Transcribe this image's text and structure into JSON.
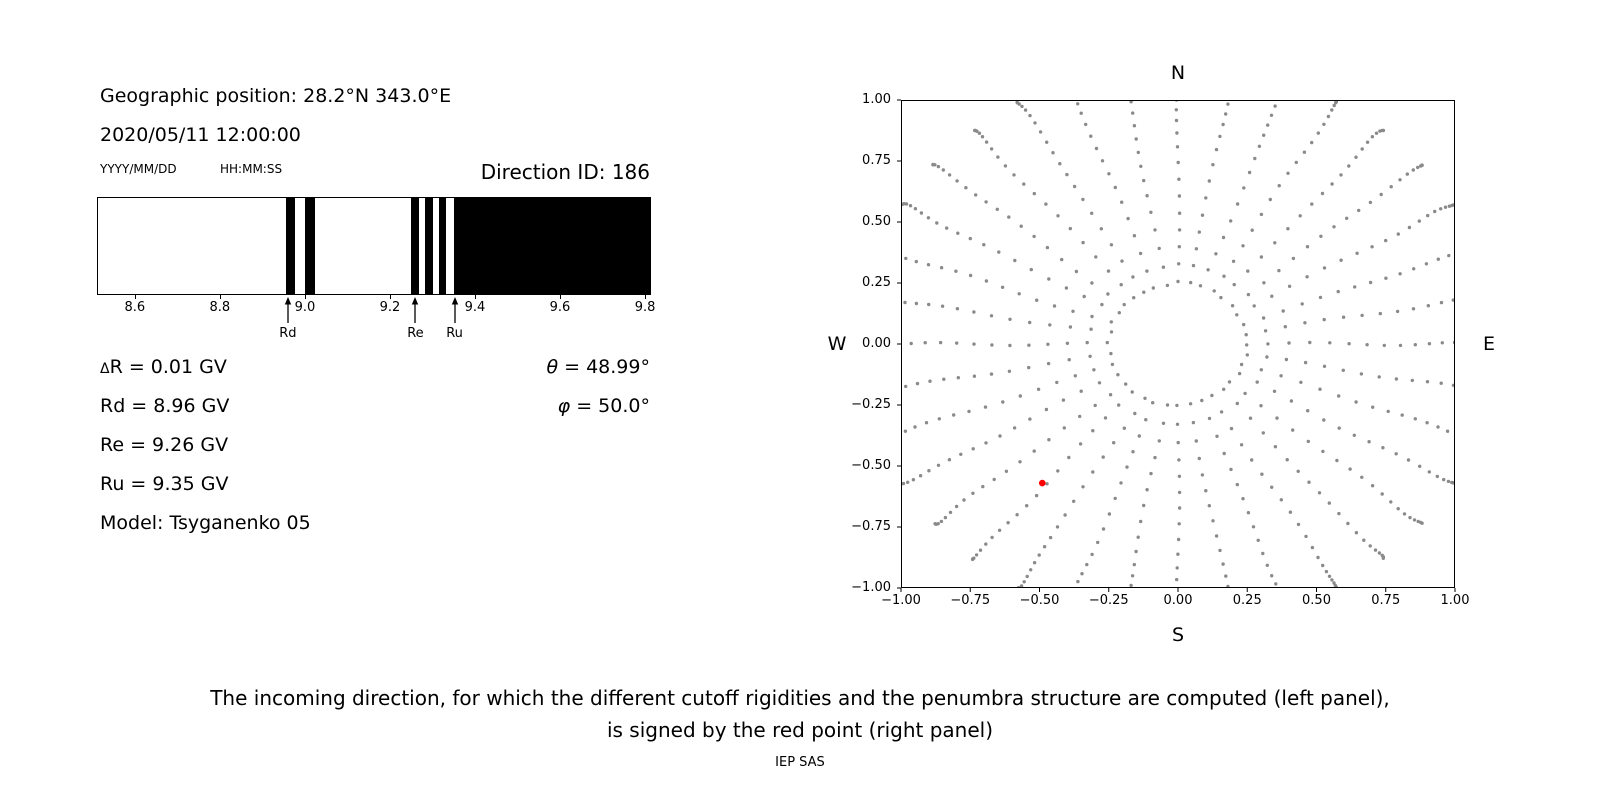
{
  "header": {
    "geo_position": "Geographic position: 28.2°N 343.0°E",
    "datetime": "2020/05/11 12:00:00",
    "date_format_label": "YYYY/MM/DD",
    "time_format_label": "HH:MM:SS",
    "direction_id_label": "Direction ID: 186"
  },
  "info": {
    "delta_symbol": "Δ",
    "delta_rest": "R = 0.01 GV",
    "rd": "Rd = 8.96 GV",
    "re": "Re = 9.26 GV",
    "ru": "Ru = 9.35 GV",
    "model": "Model: Tsyganenko 05",
    "theta_symbol": "θ",
    "theta_rest": " = 48.99°",
    "phi_symbol": "φ",
    "phi_rest": " = 50.0°"
  },
  "caption": {
    "line1": "The incoming direction, for which the different cutoff rigidities and the penumbra structure are computed (left panel),",
    "line2": "is signed by the red point (right panel)",
    "credit": "IEP SAS"
  },
  "chart_data": [
    {
      "type": "bar",
      "name": "penumbra-spectrum",
      "title": "Direction ID: 186",
      "xlabel": "",
      "ylabel": "",
      "xlim": [
        8.511,
        9.814
      ],
      "xticks": [
        8.6,
        8.8,
        9.0,
        9.2,
        9.4,
        9.6,
        9.8
      ],
      "xtick_labels": [
        "8.6",
        "8.8",
        "9.0",
        "9.2",
        "9.4",
        "9.6",
        "9.8"
      ],
      "forbidden_bands_gv": [
        [
          8.955,
          8.977
        ],
        [
          9.0,
          9.024
        ],
        [
          9.25,
          9.268
        ],
        [
          9.283,
          9.301
        ],
        [
          9.315,
          9.333
        ],
        [
          9.352,
          9.814
        ]
      ],
      "band_color": "#000000",
      "allowed_color": "#ffffff",
      "annotations": [
        {
          "label": "Rd",
          "x": 8.96
        },
        {
          "label": "Re",
          "x": 9.26
        },
        {
          "label": "Ru",
          "x": 9.352
        }
      ],
      "values": {
        "delta_R_gv": 0.01,
        "Rd_gv": 8.96,
        "Re_gv": 9.26,
        "Ru_gv": 9.35,
        "theta_deg": 48.99,
        "phi_deg": 50.0,
        "model": "Tsyganenko 05"
      }
    },
    {
      "type": "scatter",
      "name": "incoming-directions",
      "xlim": [
        -1,
        1
      ],
      "ylim": [
        -1,
        1
      ],
      "xtick_labels": [
        "−1.00",
        "−0.75",
        "−0.50",
        "−0.25",
        "0.00",
        "0.25",
        "0.50",
        "0.75",
        "1.00"
      ],
      "ytick_labels": [
        "1.00",
        "0.75",
        "0.50",
        "0.25",
        "0.00",
        "−0.25",
        "−0.50",
        "−0.75",
        "−1.00"
      ],
      "compass": {
        "top": "N",
        "bottom": "S",
        "left": "W",
        "right": "E"
      },
      "grid": false,
      "series": [
        {
          "name": "direction-grid-dots",
          "color": "#8a8a8a",
          "marker_radius_px": 1.7,
          "generator": {
            "azimuth_start_deg": 0,
            "azimuth_step_deg": 10,
            "azimuth_count": 36,
            "radii": [
              0.25,
              0.324,
              0.398,
              0.471,
              0.542,
              0.612,
              0.678,
              0.742,
              0.803,
              0.859,
              0.912,
              0.96,
              1.004,
              1.042,
              1.074,
              1.101,
              1.122,
              1.138,
              1.147,
              1.15
            ],
            "clip": 1.03
          }
        },
        {
          "name": "selected-direction",
          "color": "#ff0000",
          "marker_radius_px": 3.3,
          "points": [
            [
              -0.49,
              -0.57
            ]
          ]
        }
      ]
    }
  ]
}
